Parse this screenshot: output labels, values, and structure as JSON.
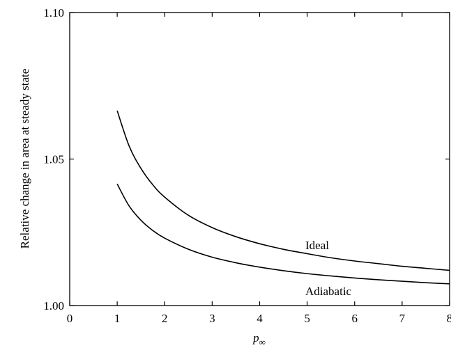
{
  "chart_data": {
    "type": "line",
    "title": "",
    "xlabel": "p",
    "xlabel_subscript": "∞",
    "ylabel": "Relative change in area at steady state",
    "xlim": [
      0,
      8
    ],
    "ylim": [
      1.0,
      1.1
    ],
    "xticks": [
      0,
      1,
      2,
      3,
      4,
      5,
      6,
      7,
      8
    ],
    "yticks": [
      1.0,
      1.05,
      1.1
    ],
    "xtick_labels": [
      "0",
      "1",
      "2",
      "3",
      "4",
      "5",
      "6",
      "7",
      "8"
    ],
    "ytick_labels": [
      "1.00",
      "1.05",
      "1.10"
    ],
    "grid": false,
    "series": [
      {
        "name": "Ideal",
        "x": [
          1.0,
          1.25,
          1.5,
          1.75,
          2.0,
          2.5,
          3.0,
          3.5,
          4.0,
          4.5,
          5.0,
          5.5,
          6.0,
          6.5,
          7.0,
          7.5,
          8.0
        ],
        "y": [
          1.0665,
          1.0545,
          1.0468,
          1.0412,
          1.037,
          1.0308,
          1.0266,
          1.0235,
          1.0211,
          1.0192,
          1.0177,
          1.0163,
          1.0152,
          1.0143,
          1.0134,
          1.0127,
          1.012
        ]
      },
      {
        "name": "Adiabatic",
        "x": [
          1.0,
          1.25,
          1.5,
          1.75,
          2.0,
          2.5,
          3.0,
          3.5,
          4.0,
          4.5,
          5.0,
          5.5,
          6.0,
          6.5,
          7.0,
          7.5,
          8.0
        ],
        "y": [
          1.0415,
          1.034,
          1.0291,
          1.0256,
          1.023,
          1.0192,
          1.0165,
          1.0146,
          1.0131,
          1.0119,
          1.0109,
          1.0101,
          1.0094,
          1.0088,
          1.0083,
          1.0078,
          1.0074
        ]
      }
    ]
  }
}
